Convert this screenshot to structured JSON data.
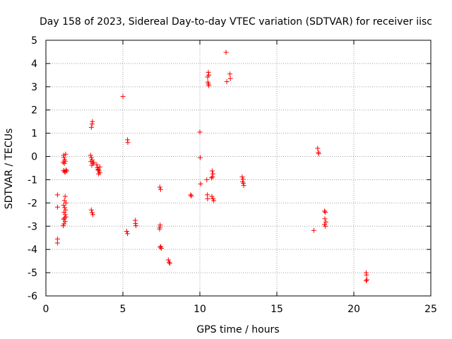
{
  "chart_data": {
    "type": "scatter",
    "title": "Day 158 of 2023, Sidereal Day-to-day VTEC variation (SDTVAR) for receiver iisc",
    "xlabel": "GPS time / hours",
    "ylabel": "SDTVAR / TECUs",
    "xlim": [
      0,
      25
    ],
    "ylim": [
      -6,
      5
    ],
    "xticks": [
      0,
      5,
      10,
      15,
      20,
      25
    ],
    "yticks": [
      -6,
      -5,
      -4,
      -3,
      -2,
      -1,
      0,
      1,
      2,
      3,
      4,
      5
    ],
    "grid": true,
    "marker": "+",
    "color": "#ff0000",
    "series": [
      {
        "name": "SDTVAR",
        "points": [
          [
            0.75,
            -1.65
          ],
          [
            0.75,
            -2.18
          ],
          [
            0.75,
            -3.55
          ],
          [
            0.75,
            -3.72
          ],
          [
            1.15,
            0.05
          ],
          [
            1.18,
            -0.05
          ],
          [
            1.22,
            -0.15
          ],
          [
            1.12,
            -0.25
          ],
          [
            1.2,
            -0.3
          ],
          [
            1.25,
            -0.22
          ],
          [
            1.28,
            0.1
          ],
          [
            1.15,
            -0.6
          ],
          [
            1.2,
            -0.65
          ],
          [
            1.25,
            -0.68
          ],
          [
            1.3,
            -0.58
          ],
          [
            1.35,
            -0.62
          ],
          [
            1.25,
            -1.72
          ],
          [
            1.2,
            -1.9
          ],
          [
            1.3,
            -2.0
          ],
          [
            1.15,
            -2.1
          ],
          [
            1.22,
            -2.2
          ],
          [
            1.28,
            -2.3
          ],
          [
            1.18,
            -2.4
          ],
          [
            1.25,
            -2.5
          ],
          [
            1.3,
            -2.6
          ],
          [
            1.2,
            -2.65
          ],
          [
            1.15,
            -2.7
          ],
          [
            1.25,
            -2.8
          ],
          [
            1.18,
            -2.9
          ],
          [
            1.12,
            -2.98
          ],
          [
            2.9,
            0.05
          ],
          [
            2.95,
            -0.05
          ],
          [
            3.0,
            -0.15
          ],
          [
            2.92,
            -0.22
          ],
          [
            3.05,
            -0.3
          ],
          [
            2.98,
            -0.38
          ],
          [
            3.1,
            -0.25
          ],
          [
            2.95,
            1.25
          ],
          [
            3.0,
            1.4
          ],
          [
            3.02,
            1.5
          ],
          [
            2.95,
            -2.3
          ],
          [
            3.0,
            -2.42
          ],
          [
            3.05,
            -2.5
          ],
          [
            3.3,
            -0.35
          ],
          [
            3.35,
            -0.48
          ],
          [
            3.4,
            -0.55
          ],
          [
            3.45,
            -0.62
          ],
          [
            3.5,
            -0.7
          ],
          [
            3.42,
            -0.75
          ],
          [
            3.38,
            -0.58
          ],
          [
            3.5,
            -0.45
          ],
          [
            5.0,
            2.58
          ],
          [
            5.3,
            0.72
          ],
          [
            5.32,
            0.6
          ],
          [
            5.25,
            -3.22
          ],
          [
            5.3,
            -3.32
          ],
          [
            5.8,
            -2.75
          ],
          [
            5.82,
            -2.88
          ],
          [
            5.85,
            -2.98
          ],
          [
            7.4,
            -1.32
          ],
          [
            7.45,
            -1.42
          ],
          [
            7.42,
            -2.95
          ],
          [
            7.4,
            -3.05
          ],
          [
            7.38,
            -3.12
          ],
          [
            7.45,
            -3.88
          ],
          [
            7.5,
            -3.95
          ],
          [
            7.42,
            -3.9
          ],
          [
            7.95,
            -4.45
          ],
          [
            8.0,
            -4.55
          ],
          [
            8.05,
            -4.6
          ],
          [
            9.4,
            -1.65
          ],
          [
            9.45,
            -1.7
          ],
          [
            10.0,
            1.05
          ],
          [
            10.02,
            -0.05
          ],
          [
            10.05,
            -1.18
          ],
          [
            10.45,
            -1.0
          ],
          [
            10.48,
            -1.65
          ],
          [
            10.5,
            -1.82
          ],
          [
            10.55,
            3.62
          ],
          [
            10.58,
            3.5
          ],
          [
            10.5,
            3.42
          ],
          [
            10.52,
            3.2
          ],
          [
            10.55,
            3.12
          ],
          [
            10.58,
            3.05
          ],
          [
            10.8,
            -0.62
          ],
          [
            10.85,
            -0.75
          ],
          [
            10.75,
            -0.92
          ],
          [
            10.82,
            -0.88
          ],
          [
            10.78,
            -1.72
          ],
          [
            10.85,
            -1.82
          ],
          [
            10.9,
            -1.9
          ],
          [
            11.7,
            4.48
          ],
          [
            11.75,
            3.22
          ],
          [
            11.95,
            3.55
          ],
          [
            11.98,
            3.35
          ],
          [
            12.75,
            -0.88
          ],
          [
            12.8,
            -0.98
          ],
          [
            12.78,
            -1.08
          ],
          [
            12.82,
            -1.15
          ],
          [
            12.85,
            -1.25
          ],
          [
            17.4,
            -3.18
          ],
          [
            17.65,
            0.35
          ],
          [
            17.7,
            0.18
          ],
          [
            17.72,
            0.12
          ],
          [
            18.1,
            -2.35
          ],
          [
            18.15,
            -2.4
          ],
          [
            18.12,
            -2.68
          ],
          [
            18.18,
            -2.82
          ],
          [
            18.1,
            -2.92
          ],
          [
            18.15,
            -3.0
          ],
          [
            20.8,
            -5.0
          ],
          [
            20.82,
            -5.1
          ],
          [
            20.85,
            -5.3
          ],
          [
            20.8,
            -5.35
          ]
        ]
      }
    ]
  }
}
